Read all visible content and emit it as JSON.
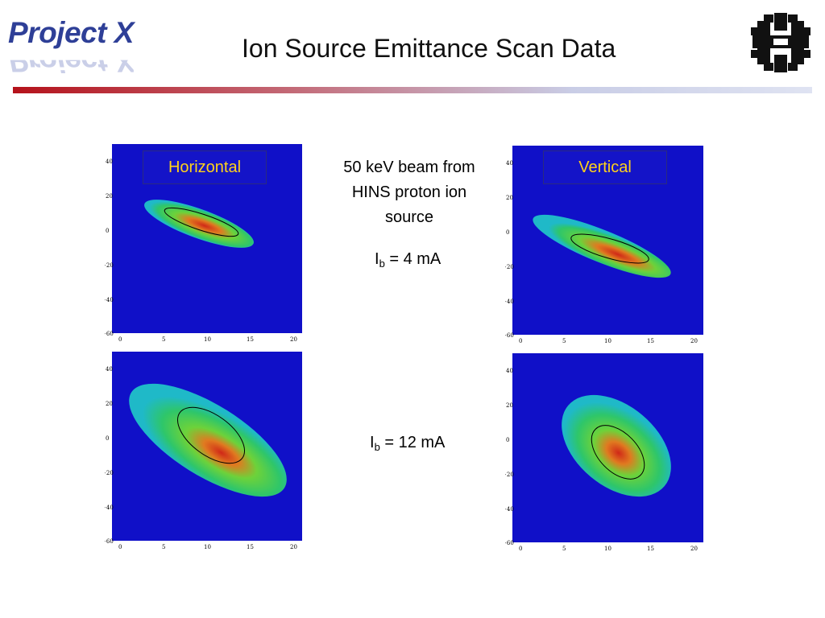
{
  "header": {
    "logo_text": "Project X",
    "title": "Ion Source Emittance Scan Data"
  },
  "plots": {
    "top_left_label": "Horizontal",
    "top_right_label": "Vertical",
    "y_ticks": [
      "40",
      "20",
      "0",
      "−20",
      "−40",
      "−60"
    ],
    "x_ticks": [
      "0",
      "5",
      "10",
      "15",
      "20"
    ]
  },
  "description": {
    "line1": "50 keV beam from",
    "line2": "HINS proton ion",
    "line3": "source"
  },
  "currents": {
    "low_prefix": "I",
    "low_sub": "b",
    "low_value": " = 4 mA",
    "high_prefix": "I",
    "high_sub": "b",
    "high_value": " = 12 mA"
  },
  "colors": {
    "plot_background": "#1010c8",
    "label_text": "#ffd21a",
    "title_bar_start": "#b5121b",
    "logo_blue": "#2e3f97"
  }
}
